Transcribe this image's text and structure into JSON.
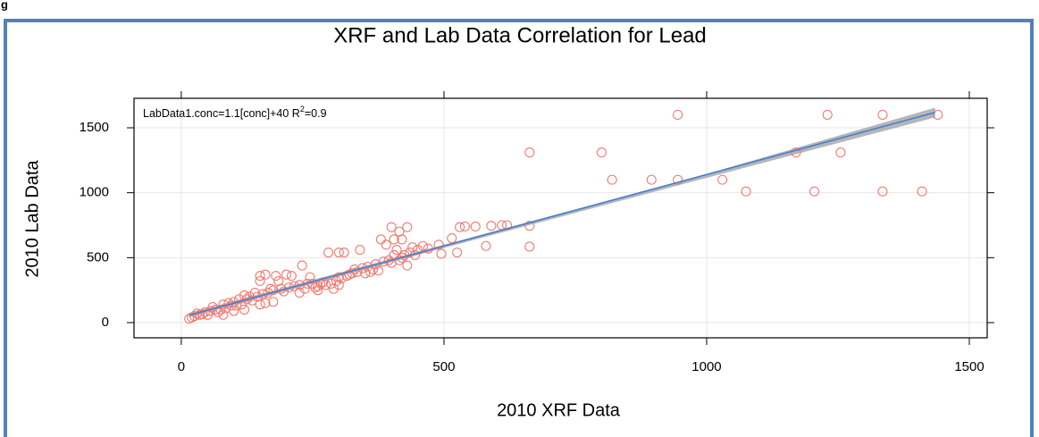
{
  "corner_text": "g",
  "chart_data": {
    "type": "scatter",
    "title": "XRF and Lab Data Correlation for Lead",
    "x_label": "2010 XRF Data",
    "y_label": "2010 Lab Data",
    "annotation": {
      "text": "LabData1.conc=1.1[conc]+40 R",
      "sup": "2",
      "tail": "=0.9"
    },
    "xlim": [
      -90,
      1534
    ],
    "ylim": [
      -117,
      1727
    ],
    "xticks": [
      0,
      500,
      1000,
      1500
    ],
    "yticks": [
      0,
      500,
      1000,
      1500
    ],
    "grid": true,
    "color": "#f07a72",
    "x": [
      663,
      663,
      663,
      800,
      820,
      895,
      945,
      945,
      1030,
      1075,
      1170,
      1205,
      1230,
      1255,
      1335,
      1335,
      1410,
      1440,
      490,
      495,
      525,
      530,
      540,
      560,
      580,
      590,
      610,
      620,
      515,
      470,
      400,
      415,
      430,
      405,
      380,
      390,
      420,
      410,
      440,
      420,
      400,
      430,
      450,
      460,
      280,
      300,
      310,
      340,
      345,
      350,
      360,
      330,
      300,
      320,
      270,
      260,
      240,
      245,
      230,
      210,
      200,
      180,
      185,
      160,
      150,
      150,
      170,
      140,
      120,
      110,
      130,
      100,
      95,
      80,
      75,
      60,
      55,
      45,
      35,
      25,
      20,
      15,
      30,
      40,
      65,
      85,
      90,
      105,
      115,
      125,
      135,
      145,
      155,
      165,
      175,
      190,
      195,
      205,
      215,
      225,
      235,
      250,
      255,
      265,
      275,
      285,
      290,
      295,
      305,
      315,
      325,
      335,
      355,
      365,
      370,
      375,
      385,
      395,
      405,
      415,
      425,
      435,
      445,
      150,
      160,
      175,
      120,
      100,
      70,
      50,
      225,
      260,
      300,
      80
    ],
    "values": [
      1310,
      585,
      745,
      1310,
      1100,
      1100,
      1600,
      1100,
      1100,
      1010,
      1310,
      1010,
      1600,
      1310,
      1600,
      1010,
      1010,
      1600,
      600,
      530,
      540,
      735,
      740,
      740,
      590,
      745,
      750,
      750,
      650,
      570,
      735,
      700,
      735,
      640,
      640,
      600,
      640,
      560,
      580,
      500,
      460,
      440,
      560,
      590,
      540,
      540,
      540,
      560,
      420,
      380,
      390,
      410,
      350,
      370,
      310,
      280,
      300,
      350,
      440,
      360,
      370,
      360,
      320,
      370,
      360,
      320,
      260,
      230,
      210,
      180,
      200,
      160,
      130,
      140,
      100,
      120,
      90,
      80,
      60,
      50,
      40,
      30,
      70,
      65,
      100,
      110,
      150,
      130,
      140,
      180,
      170,
      200,
      220,
      230,
      250,
      260,
      240,
      270,
      280,
      290,
      260,
      300,
      270,
      300,
      290,
      300,
      260,
      320,
      340,
      360,
      380,
      390,
      430,
      410,
      450,
      400,
      470,
      480,
      520,
      480,
      520,
      540,
      520,
      140,
      150,
      160,
      100,
      90,
      80,
      60,
      230,
      250,
      290,
      60
    ],
    "fit": {
      "color": "#3d7fd6",
      "x": [
        15,
        1435
      ],
      "values": [
        56.5,
        1618.5
      ]
    },
    "band": {
      "color": "#a9a9a9",
      "x": [
        15,
        500,
        1000,
        1435
      ],
      "lower": [
        40,
        575,
        1115,
        1580
      ],
      "upper": [
        73,
        600,
        1145,
        1655
      ]
    }
  }
}
